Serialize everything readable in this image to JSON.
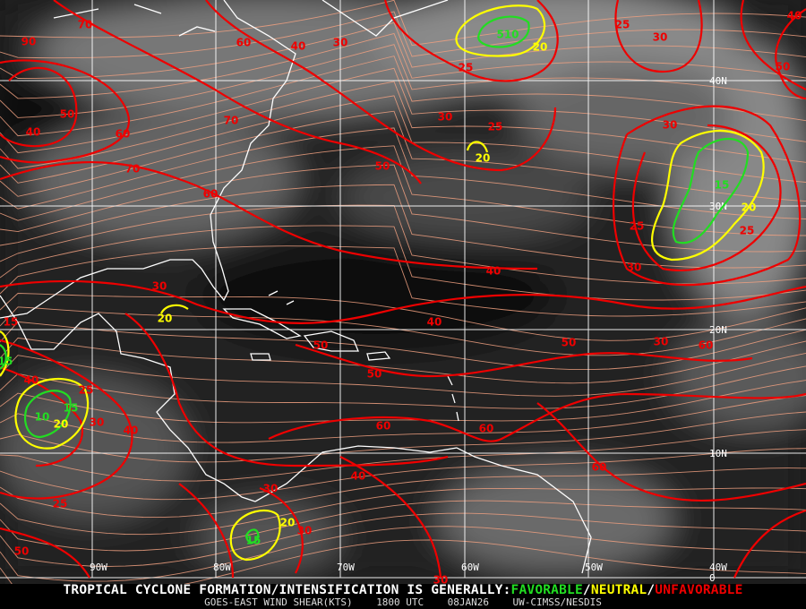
{
  "map": {
    "longitude_labels": [
      "90W",
      "80W",
      "70W",
      "60W",
      "50W",
      "40W"
    ],
    "latitude_labels": [
      "40N",
      "30N",
      "20N",
      "10N",
      "0"
    ],
    "contour_labels": {
      "unfavorable": [
        "90",
        "70",
        "60",
        "40",
        "30",
        "25",
        "25",
        "30",
        "40",
        "50",
        "50",
        "40",
        "70",
        "60",
        "70",
        "60",
        "30",
        "25",
        "50",
        "30",
        "25",
        "30",
        "25",
        "40",
        "30",
        "40",
        "15",
        "50",
        "50",
        "30",
        "60",
        "50",
        "40",
        "25",
        "30",
        "40",
        "60",
        "60",
        "60",
        "40",
        "30",
        "25",
        "30",
        "50",
        "30"
      ],
      "neutral": [
        "20",
        "20",
        "20",
        "20",
        "20",
        "20"
      ],
      "favorable": [
        "510",
        "15",
        "10",
        "15",
        "15",
        "15"
      ]
    },
    "colors": {
      "favorable": "#22dd22",
      "neutral": "#ffff00",
      "unfavorable": "#ee0000",
      "streamlines": "#f0a080",
      "coastline": "#ffffff",
      "grid": "#ffffff"
    }
  },
  "caption": {
    "prefix": "TROPICAL CYCLONE FORMATION/INTENSIFICATION IS GENERALLY:",
    "favorable": "FAVORABLE",
    "sep1": "/",
    "neutral": "NEUTRAL",
    "sep2": "/",
    "unfavorable": "UNFAVORABLE",
    "product": "GOES-EAST WIND SHEAR(KTS)",
    "time": "1800 UTC",
    "date": "08JAN26",
    "source": "UW-CIMSS/NESDIS"
  }
}
